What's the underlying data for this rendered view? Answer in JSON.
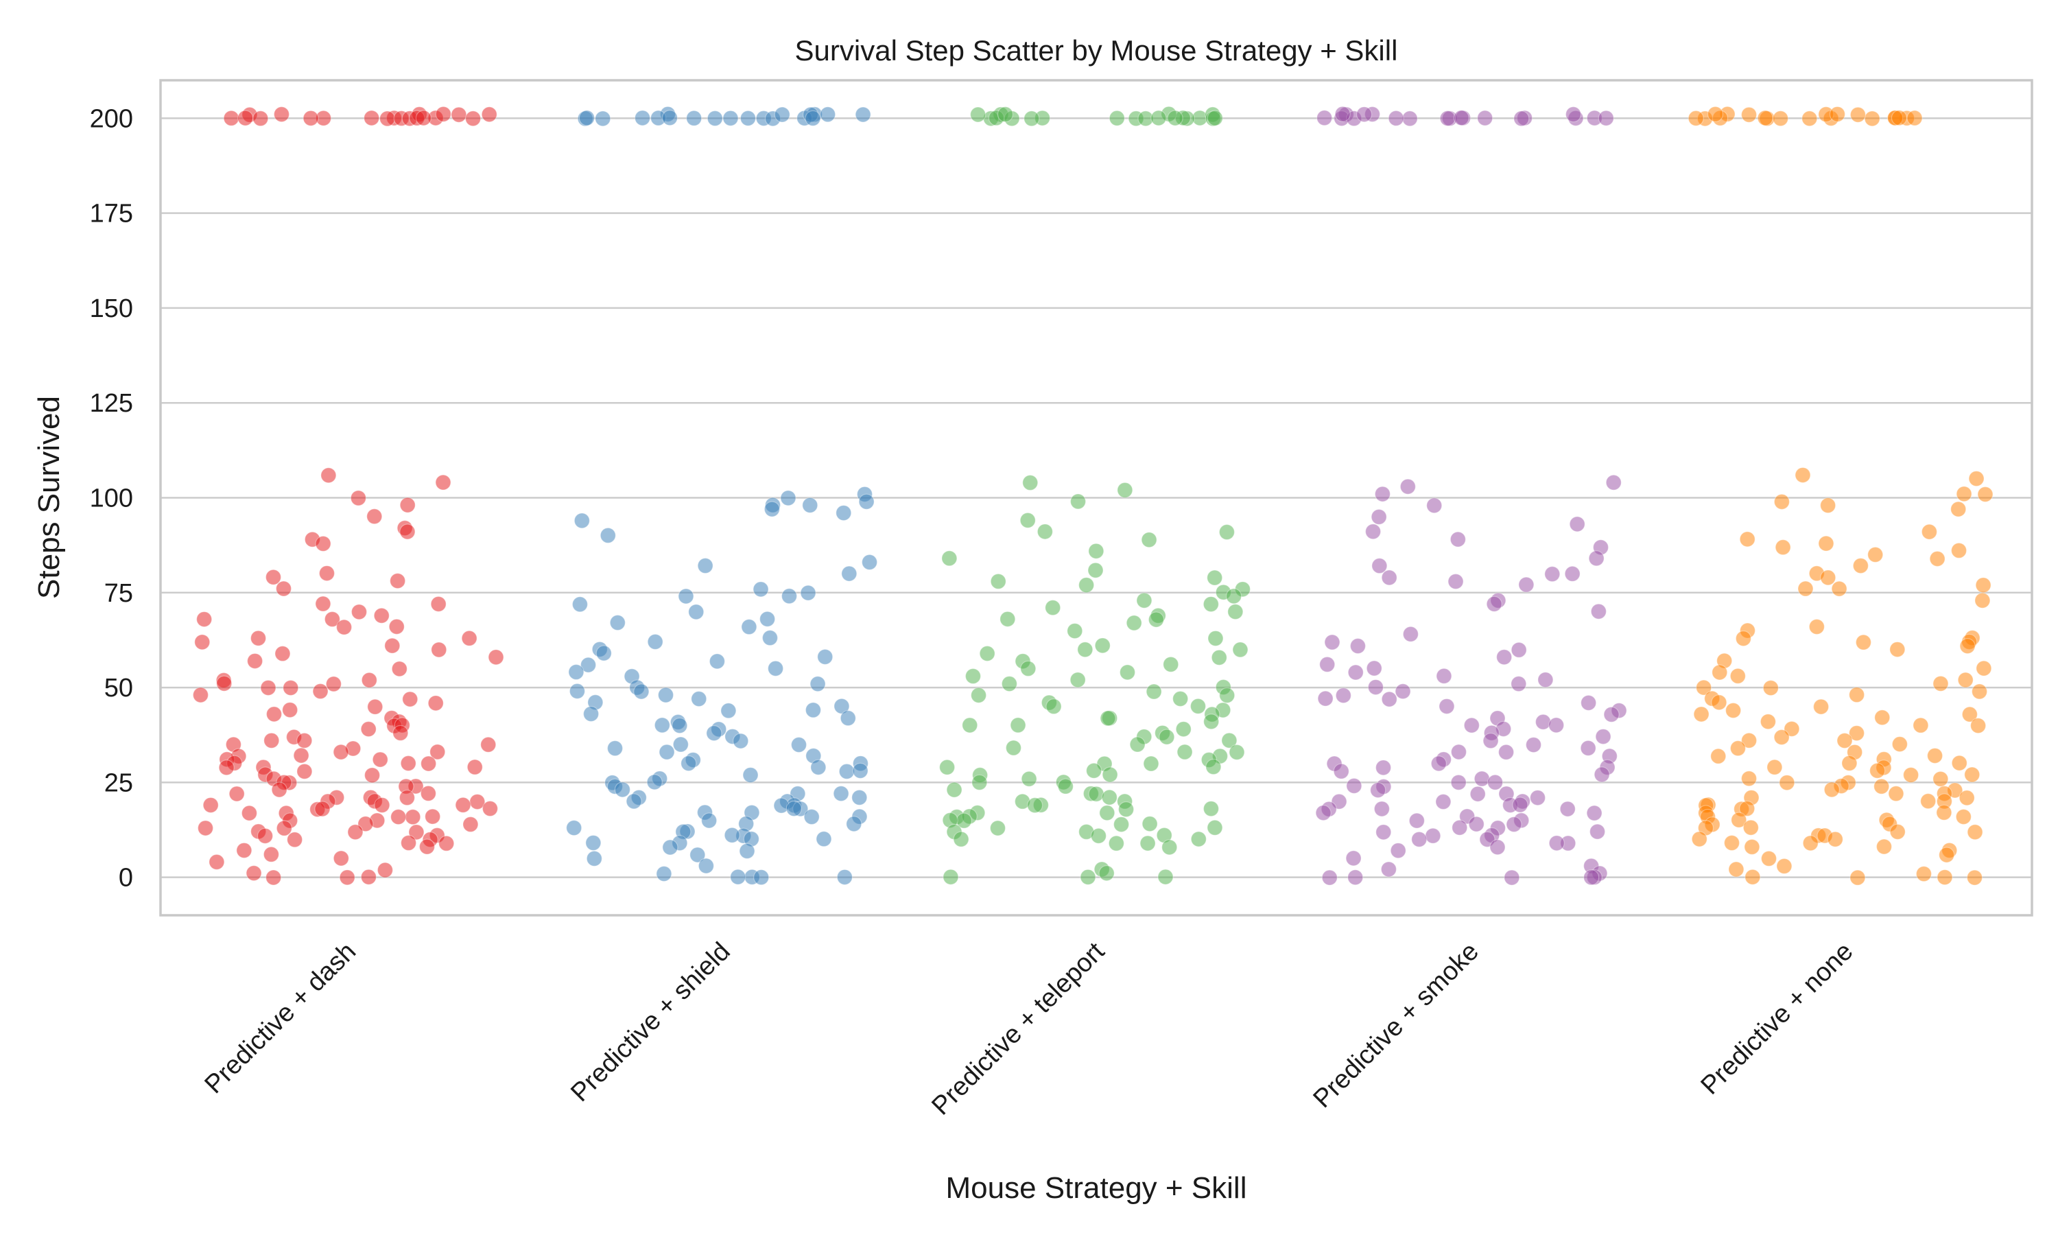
{
  "chart_data": {
    "type": "scatter",
    "title": "Survival Step Scatter by Mouse Strategy + Skill",
    "xlabel": "Mouse Strategy + Skill",
    "ylabel": "Steps Survived",
    "ylim": [
      -10,
      210
    ],
    "yticks": [
      0,
      25,
      50,
      75,
      100,
      125,
      150,
      175,
      200
    ],
    "grid": "horizontal",
    "legend": "none",
    "categories": [
      "Predictive + dash",
      "Predictive + shield",
      "Predictive + teleport",
      "Predictive + smoke",
      "Predictive + none"
    ],
    "series": [
      {
        "color": "#e41a1c",
        "values": [
          200,
          200,
          200,
          201,
          200,
          201,
          200,
          200,
          200,
          201,
          200,
          200,
          201,
          200,
          200,
          201,
          200,
          200,
          201,
          200,
          106,
          104,
          100,
          98,
          95,
          92,
          91,
          89,
          88,
          80,
          79,
          78,
          76,
          72,
          72,
          70,
          69,
          68,
          68,
          66,
          66,
          63,
          63,
          62,
          61,
          60,
          59,
          58,
          57,
          55,
          52,
          52,
          51,
          51,
          50,
          50,
          49,
          48,
          47,
          46,
          45,
          44,
          43,
          42,
          41,
          40,
          40,
          39,
          38,
          37,
          36,
          36,
          35,
          35,
          34,
          33,
          33,
          32,
          32,
          31,
          31,
          30,
          30,
          30,
          29,
          29,
          29,
          28,
          27,
          27,
          26,
          25,
          25,
          24,
          24,
          23,
          22,
          22,
          21,
          21,
          21,
          20,
          20,
          20,
          19,
          19,
          19,
          18,
          18,
          18,
          17,
          17,
          16,
          16,
          16,
          15,
          15,
          14,
          14,
          13,
          13,
          12,
          12,
          12,
          11,
          11,
          10,
          10,
          9,
          9,
          8,
          7,
          6,
          5,
          4,
          2,
          1,
          0,
          0,
          0
        ]
      },
      {
        "color": "#377eb8",
        "values": [
          201,
          200,
          201,
          200,
          200,
          200,
          201,
          200,
          200,
          200,
          201,
          200,
          200,
          201,
          200,
          200,
          201,
          200,
          200,
          200,
          101,
          100,
          99,
          98,
          98,
          97,
          96,
          94,
          90,
          83,
          82,
          80,
          76,
          75,
          74,
          74,
          72,
          70,
          68,
          67,
          66,
          63,
          62,
          60,
          59,
          58,
          57,
          56,
          55,
          54,
          53,
          51,
          50,
          49,
          49,
          48,
          47,
          46,
          45,
          44,
          44,
          43,
          42,
          41,
          40,
          40,
          39,
          38,
          37,
          36,
          35,
          35,
          34,
          33,
          32,
          31,
          30,
          30,
          29,
          28,
          28,
          27,
          26,
          25,
          25,
          24,
          23,
          22,
          22,
          21,
          21,
          20,
          20,
          19,
          19,
          18,
          18,
          17,
          17,
          16,
          16,
          15,
          14,
          14,
          13,
          12,
          12,
          11,
          11,
          10,
          10,
          9,
          9,
          8,
          7,
          6,
          5,
          3,
          1,
          0,
          0,
          0,
          0
        ]
      },
      {
        "color": "#4daf4a",
        "values": [
          200,
          200,
          201,
          200,
          200,
          200,
          201,
          200,
          200,
          201,
          200,
          200,
          200,
          201,
          200,
          200,
          200,
          201,
          200,
          200,
          104,
          102,
          99,
          94,
          91,
          91,
          89,
          86,
          84,
          81,
          79,
          78,
          77,
          76,
          75,
          74,
          73,
          72,
          71,
          70,
          69,
          68,
          68,
          67,
          65,
          63,
          61,
          60,
          60,
          59,
          58,
          57,
          56,
          55,
          54,
          53,
          52,
          51,
          50,
          49,
          48,
          48,
          47,
          46,
          45,
          45,
          44,
          43,
          42,
          42,
          41,
          40,
          40,
          39,
          38,
          37,
          37,
          36,
          35,
          34,
          33,
          33,
          32,
          31,
          30,
          30,
          29,
          29,
          28,
          27,
          27,
          26,
          25,
          25,
          24,
          23,
          22,
          22,
          21,
          20,
          20,
          19,
          19,
          18,
          18,
          17,
          17,
          16,
          16,
          15,
          15,
          14,
          14,
          13,
          13,
          12,
          12,
          11,
          11,
          10,
          10,
          9,
          9,
          8,
          2,
          1,
          0,
          0,
          0
        ]
      },
      {
        "color": "#984ea3",
        "values": [
          200,
          201,
          200,
          200,
          200,
          200,
          201,
          200,
          200,
          201,
          200,
          200,
          200,
          201,
          200,
          200,
          201,
          200,
          200,
          200,
          104,
          103,
          101,
          98,
          95,
          93,
          91,
          89,
          87,
          84,
          82,
          80,
          80,
          79,
          78,
          77,
          73,
          72,
          70,
          64,
          62,
          61,
          60,
          58,
          56,
          55,
          54,
          53,
          52,
          51,
          50,
          49,
          48,
          47,
          47,
          46,
          45,
          44,
          43,
          42,
          41,
          40,
          40,
          39,
          38,
          37,
          36,
          35,
          34,
          33,
          33,
          32,
          31,
          30,
          30,
          29,
          29,
          28,
          27,
          26,
          25,
          25,
          24,
          24,
          23,
          22,
          22,
          21,
          20,
          20,
          20,
          19,
          19,
          18,
          18,
          18,
          17,
          17,
          16,
          15,
          15,
          14,
          14,
          13,
          13,
          12,
          12,
          11,
          11,
          10,
          10,
          9,
          9,
          8,
          7,
          5,
          3,
          2,
          1,
          0,
          0,
          0,
          0,
          0
        ]
      },
      {
        "color": "#ff7f00",
        "values": [
          200,
          201,
          200,
          200,
          201,
          200,
          200,
          200,
          201,
          200,
          200,
          201,
          200,
          200,
          200,
          201,
          200,
          200,
          201,
          200,
          106,
          105,
          101,
          101,
          99,
          98,
          97,
          91,
          89,
          88,
          87,
          86,
          85,
          84,
          82,
          80,
          79,
          77,
          76,
          76,
          73,
          66,
          65,
          63,
          63,
          62,
          62,
          61,
          60,
          57,
          55,
          54,
          53,
          52,
          51,
          50,
          50,
          49,
          48,
          47,
          46,
          45,
          44,
          43,
          43,
          42,
          41,
          40,
          40,
          39,
          38,
          37,
          36,
          36,
          35,
          34,
          33,
          32,
          32,
          31,
          30,
          30,
          29,
          29,
          28,
          27,
          27,
          26,
          26,
          25,
          25,
          24,
          24,
          23,
          23,
          22,
          22,
          21,
          21,
          20,
          20,
          19,
          19,
          18,
          18,
          17,
          17,
          16,
          16,
          15,
          15,
          14,
          14,
          13,
          13,
          12,
          12,
          11,
          11,
          10,
          10,
          9,
          9,
          8,
          8,
          7,
          6,
          5,
          3,
          2,
          1,
          0,
          0,
          0,
          0
        ]
      }
    ]
  }
}
